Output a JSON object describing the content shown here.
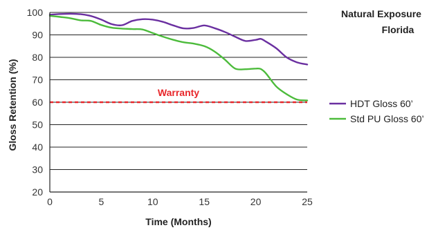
{
  "chart_data": {
    "type": "line",
    "title_lines": [
      "Natural Exposure",
      "Florida"
    ],
    "xlabel": "Time (Months)",
    "ylabel": "Gloss Retention (%)",
    "xlim": [
      0,
      25
    ],
    "ylim": [
      20,
      100
    ],
    "xticks": [
      0,
      5,
      10,
      15,
      20,
      25
    ],
    "yticks": [
      20,
      30,
      40,
      50,
      60,
      70,
      80,
      90,
      100
    ],
    "grid": "horizontal",
    "legend_position": "right",
    "series": [
      {
        "name": "HDT Gloss 60’",
        "color": "#6a2fa0",
        "x": [
          0,
          1,
          2,
          3,
          4,
          5,
          6,
          7,
          8,
          9,
          10,
          11,
          12,
          13,
          14,
          15,
          16,
          17,
          18,
          19,
          20,
          20.5,
          21,
          22,
          23,
          24,
          25
        ],
        "y": [
          99,
          99.3,
          99.4,
          99.2,
          98.4,
          96.8,
          94.8,
          94.3,
          96.2,
          97.0,
          96.8,
          95.8,
          94.2,
          92.9,
          93.1,
          94.2,
          93.0,
          91.3,
          89.2,
          87.3,
          87.8,
          88.2,
          87.0,
          84.0,
          80.0,
          77.8,
          76.8
        ]
      },
      {
        "name": "Std PU Gloss 60’",
        "color": "#4cbb3b",
        "x": [
          0,
          1,
          2,
          3,
          4,
          5,
          6,
          7,
          8,
          9,
          10,
          11,
          12,
          13,
          14,
          15,
          16,
          17,
          18,
          19,
          20,
          20.5,
          21,
          22,
          23,
          24,
          25
        ],
        "y": [
          98.5,
          98.0,
          97.4,
          96.5,
          96.2,
          94.4,
          93.2,
          92.8,
          92.6,
          92.4,
          90.8,
          89.2,
          87.8,
          86.7,
          86.1,
          85.0,
          82.6,
          79.0,
          75.0,
          74.7,
          75.0,
          74.8,
          72.8,
          67.0,
          63.6,
          61.2,
          60.8
        ]
      }
    ],
    "reference_line": {
      "label": "Warranty",
      "y": 60,
      "color": "#e8262a",
      "style": "dashed"
    }
  }
}
